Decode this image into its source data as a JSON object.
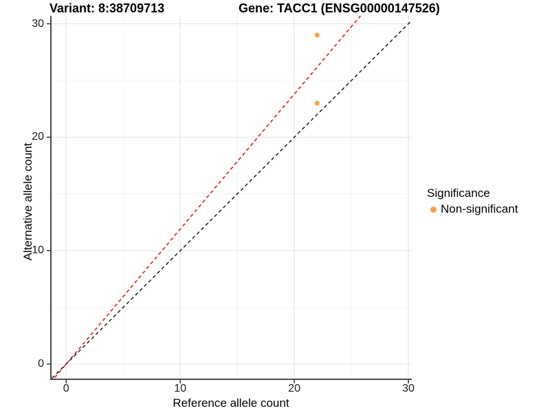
{
  "titles": {
    "left": "Variant: 8:38709713",
    "right": "Gene: TACC1 (ENSG00000147526)"
  },
  "legend": {
    "title": "Significance",
    "items": [
      {
        "label": "Non-significant",
        "color": "#F8A442"
      }
    ]
  },
  "colors": {
    "background": "#FFFFFF",
    "grid_major": "#E3E3E3",
    "grid_minor": "#F1F1F1",
    "axis_line": "#333333",
    "tick_mark": "#333333",
    "point": "#F8A442",
    "ratio_line": "#FF0000",
    "identity_line": "#1A1A1A"
  },
  "chart_data": {
    "type": "scatter",
    "title": "Variant: 8:38709713 — Gene: TACC1 (ENSG00000147526)",
    "xlabel": "Reference allele count",
    "ylabel": "Alternative allele count",
    "xlim": [
      -1.4,
      30.3
    ],
    "ylim": [
      -1.4,
      30.7
    ],
    "x_ticks": [
      0,
      10,
      20,
      30
    ],
    "y_ticks": [
      0,
      10,
      20,
      30
    ],
    "x_minor_ticks": [
      5,
      15,
      25
    ],
    "y_minor_ticks": [
      5,
      15,
      25
    ],
    "grid": true,
    "legend_position": "right",
    "series": [
      {
        "name": "Non-significant",
        "color": "#F8A442",
        "points": [
          [
            22,
            29
          ],
          [
            22,
            23
          ]
        ]
      }
    ],
    "lines": [
      {
        "name": "expected-ratio-line",
        "slope": 1.19,
        "intercept": 0,
        "color": "#FF0000",
        "style": "dashed"
      },
      {
        "name": "identity-line",
        "slope": 1,
        "intercept": 0,
        "color": "#1A1A1A",
        "style": "dashed"
      }
    ]
  }
}
